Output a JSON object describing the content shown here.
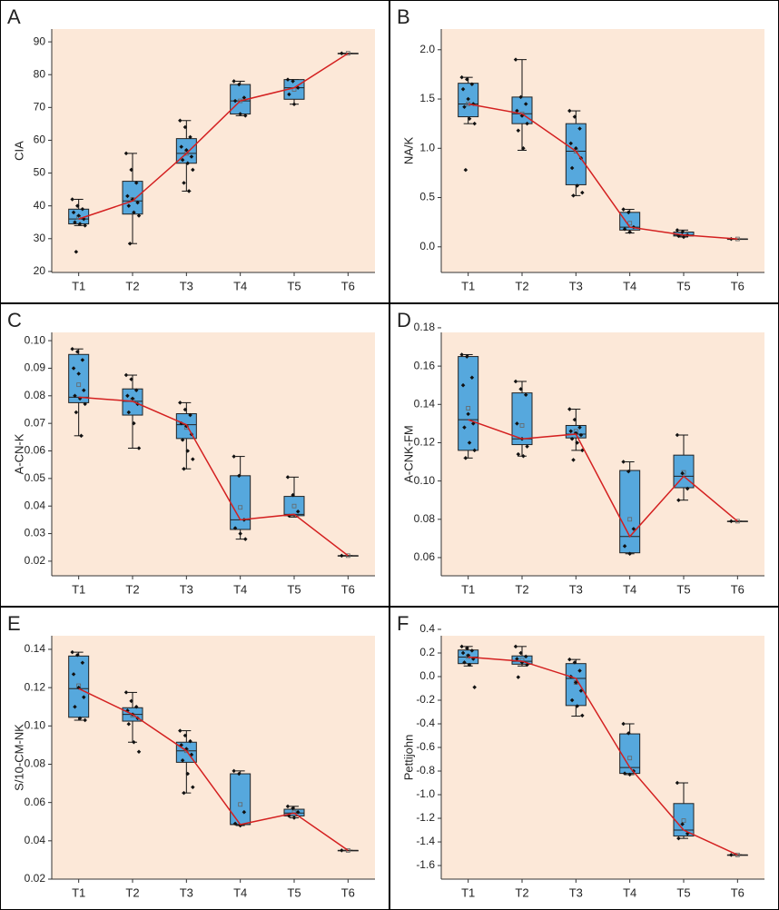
{
  "chart_data": [
    {
      "type": "box",
      "panel_label": "A",
      "y_label": "CIA",
      "categories": [
        "T1",
        "T2",
        "T3",
        "T4",
        "T5",
        "T6"
      ],
      "ylim": [
        19.7,
        93.9
      ],
      "yticks": [
        20,
        30,
        40,
        50,
        60,
        70,
        80,
        90
      ],
      "min": [
        34,
        28.5,
        44.5,
        67.5,
        71,
        86.5
      ],
      "q1": [
        34.5,
        37.5,
        53,
        68,
        72.5,
        86.5
      ],
      "median": [
        36,
        41.5,
        56,
        72,
        76,
        86.5
      ],
      "q3": [
        39,
        47.5,
        60.5,
        77,
        78.5,
        86.5
      ],
      "max": [
        42,
        56,
        66,
        78,
        78.5,
        86.5
      ],
      "mean": [
        36.5,
        42,
        56,
        72,
        75.5,
        86.5
      ],
      "points": [
        [
          42,
          40,
          39,
          38,
          37,
          36,
          35,
          34.5,
          34,
          26
        ],
        [
          56,
          51,
          47,
          43,
          42,
          41,
          40,
          38,
          37,
          28.5
        ],
        [
          66,
          64,
          61,
          58,
          57,
          55,
          54,
          53,
          51,
          47,
          44.5
        ],
        [
          78,
          77,
          73,
          72,
          68,
          67.5
        ],
        [
          78.5,
          78,
          76,
          74,
          71
        ],
        [
          86.5
        ]
      ],
      "box_color": "#56a8dd",
      "line_color": "#d42020",
      "background": "#fce8d8"
    },
    {
      "type": "box",
      "panel_label": "B",
      "y_label": "NA/K",
      "categories": [
        "T1",
        "T2",
        "T3",
        "T4",
        "T5",
        "T6"
      ],
      "ylim": [
        -0.26,
        2.21
      ],
      "yticks": [
        {
          "value": 0,
          "label": "0.0"
        },
        0.5,
        {
          "value": 1,
          "label": "1.0"
        },
        1.5,
        {
          "value": 2,
          "label": "2.0"
        }
      ],
      "min": [
        1.25,
        0.98,
        0.52,
        0.14,
        0.1,
        0.08
      ],
      "q1": [
        1.32,
        1.25,
        0.63,
        0.17,
        0.11,
        0.08
      ],
      "median": [
        1.45,
        1.35,
        0.97,
        0.2,
        0.12,
        0.08
      ],
      "q3": [
        1.66,
        1.52,
        1.25,
        0.35,
        0.15,
        0.08
      ],
      "max": [
        1.72,
        1.9,
        1.38,
        0.38,
        0.17,
        0.08
      ],
      "mean": [
        1.45,
        1.35,
        0.97,
        0.24,
        0.13,
        0.08
      ],
      "points": [
        [
          1.72,
          1.7,
          1.65,
          1.6,
          1.5,
          1.45,
          1.42,
          1.3,
          1.25,
          0.78
        ],
        [
          1.9,
          1.52,
          1.45,
          1.38,
          1.33,
          1.25,
          1.18,
          1.0
        ],
        [
          1.38,
          1.32,
          1.2,
          1.05,
          1.0,
          0.9,
          0.8,
          0.62,
          0.55,
          0.52
        ],
        [
          0.38,
          0.35,
          0.2,
          0.18,
          0.15
        ],
        [
          0.17,
          0.15,
          0.12,
          0.11,
          0.1
        ],
        [
          0.08
        ]
      ],
      "box_color": "#56a8dd",
      "line_color": "#d42020",
      "background": "#fce8d8"
    },
    {
      "type": "box",
      "panel_label": "C",
      "y_label": "A-CN-K",
      "categories": [
        "T1",
        "T2",
        "T3",
        "T4",
        "T5",
        "T6"
      ],
      "ylim": [
        0.0147,
        0.103
      ],
      "yticks": [
        0.02,
        0.03,
        0.04,
        0.05,
        0.06,
        0.07,
        0.08,
        0.09,
        {
          "value": 0.1,
          "label": "0.10"
        }
      ],
      "min": [
        0.0655,
        0.061,
        0.0535,
        0.028,
        0.036,
        0.022
      ],
      "q1": [
        0.0775,
        0.073,
        0.0645,
        0.0315,
        0.0365,
        0.022
      ],
      "median": [
        0.0795,
        0.078,
        0.0695,
        0.035,
        0.037,
        0.022
      ],
      "q3": [
        0.095,
        0.0825,
        0.0735,
        0.051,
        0.0435,
        0.022
      ],
      "max": [
        0.097,
        0.0875,
        0.0775,
        0.058,
        0.0505,
        0.022
      ],
      "mean": [
        0.084,
        0.0785,
        0.0685,
        0.0395,
        0.04,
        0.022
      ],
      "points": [
        [
          0.097,
          0.096,
          0.093,
          0.09,
          0.088,
          0.082,
          0.08,
          0.079,
          0.077,
          0.074,
          0.0655
        ],
        [
          0.0875,
          0.086,
          0.082,
          0.08,
          0.079,
          0.077,
          0.074,
          0.07,
          0.061
        ],
        [
          0.0775,
          0.075,
          0.073,
          0.07,
          0.069,
          0.066,
          0.064,
          0.06,
          0.057,
          0.0535
        ],
        [
          0.058,
          0.051,
          0.035,
          0.032,
          0.03,
          0.028
        ],
        [
          0.0505,
          0.044,
          0.038,
          0.0365
        ],
        [
          0.022
        ]
      ],
      "box_color": "#56a8dd",
      "line_color": "#d42020",
      "background": "#fce8d8"
    },
    {
      "type": "box",
      "panel_label": "D",
      "y_label": "A-CNK-FM",
      "categories": [
        "T1",
        "T2",
        "T3",
        "T4",
        "T5",
        "T6"
      ],
      "ylim": [
        0.0505,
        0.1776
      ],
      "yticks": [
        0.06,
        0.08,
        {
          "value": 0.1,
          "label": "0.10"
        },
        0.12,
        0.14,
        0.16,
        0.18
      ],
      "min": [
        0.112,
        0.113,
        0.116,
        0.062,
        0.09,
        0.079
      ],
      "q1": [
        0.116,
        0.119,
        0.1225,
        0.0625,
        0.0965,
        0.079
      ],
      "median": [
        0.132,
        0.122,
        0.1245,
        0.071,
        0.1025,
        0.079
      ],
      "q3": [
        0.165,
        0.146,
        0.129,
        0.1055,
        0.1135,
        0.079
      ],
      "max": [
        0.166,
        0.152,
        0.1375,
        0.11,
        0.124,
        0.079
      ],
      "mean": [
        0.138,
        0.129,
        0.126,
        0.08,
        0.1045,
        0.079
      ],
      "points": [
        [
          0.166,
          0.165,
          0.154,
          0.15,
          0.135,
          0.13,
          0.128,
          0.12,
          0.116,
          0.112
        ],
        [
          0.152,
          0.148,
          0.145,
          0.13,
          0.122,
          0.118,
          0.114,
          0.113
        ],
        [
          0.1375,
          0.132,
          0.128,
          0.126,
          0.125,
          0.124,
          0.122,
          0.12,
          0.116,
          0.111
        ],
        [
          0.11,
          0.105,
          0.075,
          0.066,
          0.062
        ],
        [
          0.124,
          0.104,
          0.096,
          0.09
        ],
        [
          0.079
        ]
      ],
      "box_color": "#56a8dd",
      "line_color": "#d42020",
      "background": "#fce8d8"
    },
    {
      "type": "box",
      "panel_label": "E",
      "y_label": "S/10-CM-NK",
      "categories": [
        "T1",
        "T2",
        "T3",
        "T4",
        "T5",
        "T6"
      ],
      "ylim": [
        0.02,
        0.1471
      ],
      "yticks": [
        0.02,
        0.04,
        0.06,
        0.08,
        {
          "value": 0.1,
          "label": "0.10"
        },
        0.12,
        0.14
      ],
      "min": [
        0.103,
        0.0915,
        0.065,
        0.048,
        0.052,
        0.035
      ],
      "q1": [
        0.1045,
        0.1025,
        0.081,
        0.0485,
        0.053,
        0.035
      ],
      "median": [
        0.1195,
        0.106,
        0.087,
        0.0485,
        0.0545,
        0.035
      ],
      "q3": [
        0.1365,
        0.1095,
        0.0915,
        0.075,
        0.0565,
        0.035
      ],
      "max": [
        0.1385,
        0.1175,
        0.0975,
        0.0765,
        0.058,
        0.035
      ],
      "mean": [
        0.121,
        0.1055,
        0.087,
        0.059,
        0.055,
        0.035
      ],
      "points": [
        [
          0.1385,
          0.137,
          0.133,
          0.127,
          0.12,
          0.115,
          0.11,
          0.104,
          0.103
        ],
        [
          0.1175,
          0.113,
          0.11,
          0.108,
          0.106,
          0.104,
          0.101,
          0.0915,
          0.0865
        ],
        [
          0.0975,
          0.095,
          0.092,
          0.09,
          0.088,
          0.085,
          0.082,
          0.075,
          0.068,
          0.065
        ],
        [
          0.0765,
          0.075,
          0.055,
          0.049,
          0.048
        ],
        [
          0.058,
          0.057,
          0.055,
          0.053,
          0.052
        ],
        [
          0.035
        ]
      ],
      "box_color": "#56a8dd",
      "line_color": "#d42020",
      "background": "#fce8d8"
    },
    {
      "type": "box",
      "panel_label": "F",
      "y_label": "Pettijohn",
      "categories": [
        "T1",
        "T2",
        "T3",
        "T4",
        "T5",
        "T6"
      ],
      "ylim": [
        -1.715,
        0.346
      ],
      "yticks": [
        0.4,
        0.2,
        {
          "value": 0,
          "label": "0.0"
        },
        -0.2,
        -0.4,
        -0.6,
        -0.8,
        {
          "value": -1,
          "label": "-1.0"
        },
        -1.2,
        -1.4,
        -1.6
      ],
      "min": [
        0.09,
        0.09,
        -0.335,
        -0.83,
        -1.37,
        -1.51
      ],
      "q1": [
        0.11,
        0.105,
        -0.245,
        -0.82,
        -1.35,
        -1.51
      ],
      "median": [
        0.165,
        0.13,
        -0.015,
        -0.77,
        -1.3,
        -1.51
      ],
      "q3": [
        0.225,
        0.175,
        0.11,
        -0.485,
        -1.075,
        -1.51
      ],
      "max": [
        0.255,
        0.255,
        0.145,
        -0.4,
        -0.9,
        -1.51
      ],
      "mean": [
        0.17,
        0.14,
        -0.05,
        -0.69,
        -1.22,
        -1.51
      ],
      "points": [
        [
          0.255,
          0.24,
          0.22,
          0.2,
          0.18,
          0.15,
          0.12,
          0.1,
          -0.09
        ],
        [
          0.255,
          0.2,
          0.17,
          0.15,
          0.12,
          0.1,
          -0.005
        ],
        [
          0.145,
          0.12,
          0.05,
          0,
          -0.05,
          -0.12,
          -0.2,
          -0.25,
          -0.33
        ],
        [
          -0.4,
          -0.48,
          -0.8,
          -0.82,
          -0.83
        ],
        [
          -0.9,
          -1.25,
          -1.33,
          -1.37
        ],
        [
          -1.51
        ]
      ],
      "box_color": "#56a8dd",
      "line_color": "#d42020",
      "background": "#fce8d8"
    }
  ]
}
